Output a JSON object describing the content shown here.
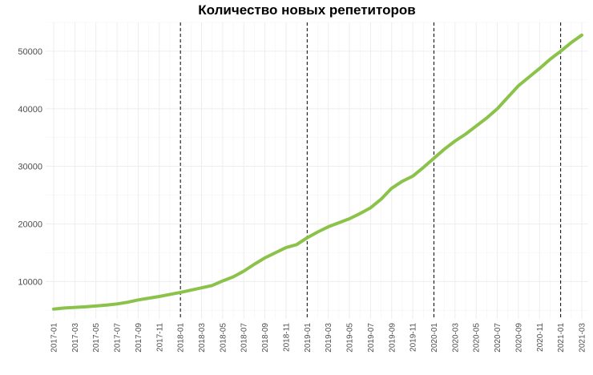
{
  "chart_data": {
    "type": "line",
    "title": "Количество новых репетиторов",
    "xlabel": "",
    "ylabel": "",
    "x": [
      "2017-01",
      "2017-02",
      "2017-03",
      "2017-04",
      "2017-05",
      "2017-06",
      "2017-07",
      "2017-08",
      "2017-09",
      "2017-10",
      "2017-11",
      "2017-12",
      "2018-01",
      "2018-02",
      "2018-03",
      "2018-04",
      "2018-05",
      "2018-06",
      "2018-07",
      "2018-08",
      "2018-09",
      "2018-10",
      "2018-11",
      "2018-12",
      "2019-01",
      "2019-02",
      "2019-03",
      "2019-04",
      "2019-05",
      "2019-06",
      "2019-07",
      "2019-08",
      "2019-09",
      "2019-10",
      "2019-11",
      "2019-12",
      "2020-01",
      "2020-02",
      "2020-03",
      "2020-04",
      "2020-05",
      "2020-06",
      "2020-07",
      "2020-08",
      "2020-09",
      "2020-10",
      "2020-11",
      "2020-12",
      "2021-01",
      "2021-02",
      "2021-03"
    ],
    "series": [
      {
        "values": [
          5200,
          5400,
          5500,
          5600,
          5750,
          5900,
          6100,
          6400,
          6800,
          7100,
          7400,
          7750,
          8100,
          8500,
          8900,
          9300,
          10100,
          10800,
          11800,
          13000,
          14100,
          15000,
          15900,
          16400,
          17600,
          18600,
          19500,
          20200,
          20900,
          21800,
          22800,
          24300,
          26200,
          27400,
          28300,
          29800,
          31400,
          33000,
          34400,
          35600,
          37000,
          38400,
          40000,
          42000,
          44000,
          45500,
          47000,
          48600,
          50000,
          51500,
          52800
        ]
      }
    ],
    "color": "#8bc34a",
    "vlines": [
      "2018-01",
      "2019-01",
      "2020-01",
      "2021-01"
    ],
    "yticks": [
      10000,
      20000,
      30000,
      40000,
      50000
    ],
    "ytick_labels": [
      "10000",
      "20000",
      "30000",
      "40000",
      "50000"
    ],
    "xtick_labels": [
      "2017-01",
      "2017-03",
      "2017-05",
      "2017-07",
      "2017-09",
      "2017-11",
      "2018-01",
      "2018-03",
      "2018-05",
      "2018-07",
      "2018-09",
      "2018-11",
      "2019-01",
      "2019-03",
      "2019-05",
      "2019-07",
      "2019-09",
      "2019-11",
      "2020-01",
      "2020-03",
      "2020-05",
      "2020-07",
      "2020-09",
      "2020-11",
      "2021-01",
      "2021-03"
    ],
    "ylim": [
      3500,
      55000
    ],
    "grid": true,
    "legend": "none"
  }
}
